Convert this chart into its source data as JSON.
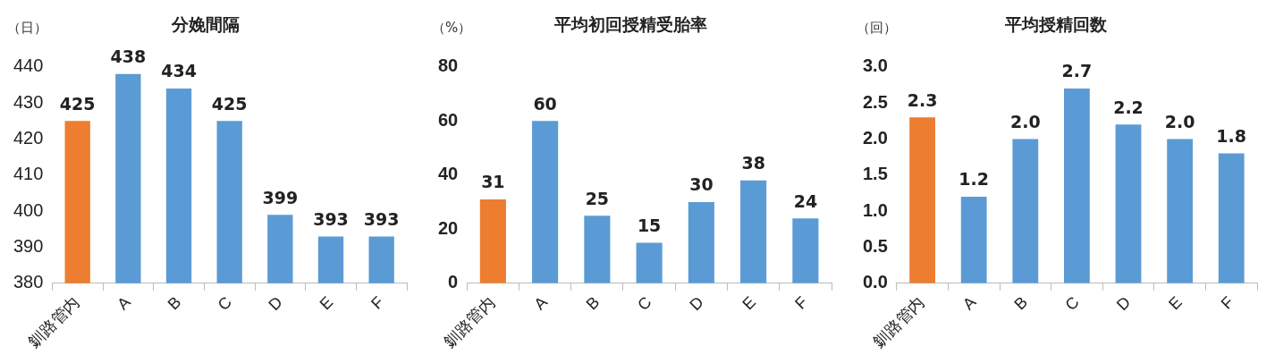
{
  "chart_data": [
    {
      "type": "bar",
      "title": "分娩間隔",
      "ylabel": "（日）",
      "categories": [
        "釧路管内",
        "A",
        "B",
        "C",
        "D",
        "E",
        "F"
      ],
      "values": [
        425,
        438,
        434,
        425,
        399,
        393,
        393
      ],
      "colors": [
        "#ed7d31",
        "#5b9bd5",
        "#5b9bd5",
        "#5b9bd5",
        "#5b9bd5",
        "#5b9bd5",
        "#5b9bd5"
      ],
      "ylim": [
        380,
        440
      ],
      "yticks": [
        380,
        390,
        400,
        410,
        420,
        430,
        440
      ],
      "grid": false,
      "legend": false,
      "data_labels": true
    },
    {
      "type": "bar",
      "title": "平均初回授精受胎率",
      "ylabel": "（%）",
      "categories": [
        "釧路管内",
        "A",
        "B",
        "C",
        "D",
        "E",
        "F"
      ],
      "values": [
        31,
        60,
        25,
        15,
        30,
        38,
        24
      ],
      "colors": [
        "#ed7d31",
        "#5b9bd5",
        "#5b9bd5",
        "#5b9bd5",
        "#5b9bd5",
        "#5b9bd5",
        "#5b9bd5"
      ],
      "ylim": [
        0,
        80
      ],
      "yticks": [
        0,
        20,
        40,
        60,
        80
      ],
      "grid": false,
      "legend": false,
      "data_labels": true
    },
    {
      "type": "bar",
      "title": "平均授精回数",
      "ylabel": "（回）",
      "categories": [
        "釧路管内",
        "A",
        "B",
        "C",
        "D",
        "E",
        "F"
      ],
      "values": [
        2.3,
        1.2,
        2.0,
        2.7,
        2.2,
        2.0,
        1.8
      ],
      "colors": [
        "#ed7d31",
        "#5b9bd5",
        "#5b9bd5",
        "#5b9bd5",
        "#5b9bd5",
        "#5b9bd5",
        "#5b9bd5"
      ],
      "ylim": [
        0,
        3.0
      ],
      "yticks": [
        {
          "value": 0,
          "label": "0.0"
        },
        {
          "value": 0.5,
          "label": "0.5"
        },
        {
          "value": 1,
          "label": "1.0"
        },
        {
          "value": 1.5,
          "label": "1.5"
        },
        {
          "value": 2,
          "label": "2.0"
        },
        {
          "value": 2.5,
          "label": "2.5"
        },
        {
          "value": 3,
          "label": "3.0"
        }
      ],
      "grid": false,
      "legend": false,
      "data_labels": true,
      "value_labels": [
        "2.3",
        "1.2",
        "2.0",
        "2.7",
        "2.2",
        "2.0",
        "1.8"
      ]
    }
  ]
}
